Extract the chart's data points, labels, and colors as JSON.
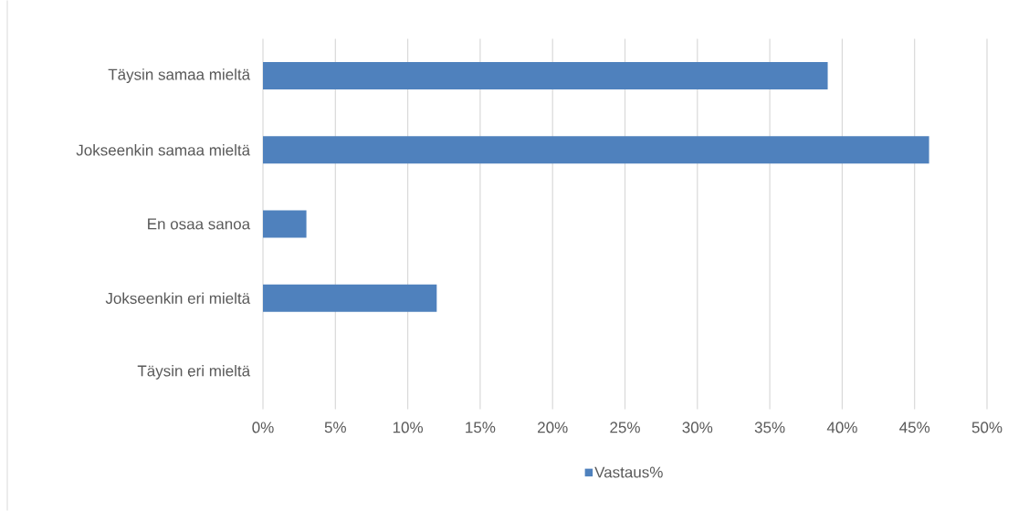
{
  "chart_data": {
    "type": "bar",
    "orientation": "horizontal",
    "categories": [
      "Täysin samaa mieltä",
      "Jokseenkin samaa mieltä",
      "En osaa sanoa",
      "Jokseenkin eri mieltä",
      "Täysin eri mieltä"
    ],
    "series": [
      {
        "name": "Vastaus%",
        "color": "#4f81bd",
        "values": [
          39,
          46,
          3,
          12,
          0
        ]
      }
    ],
    "xlim": [
      0,
      50
    ],
    "xticks": [
      {
        "value": 0,
        "label": "0%"
      },
      {
        "value": 5,
        "label": "5%"
      },
      {
        "value": 10,
        "label": "10%"
      },
      {
        "value": 15,
        "label": "15%"
      },
      {
        "value": 20,
        "label": "20%"
      },
      {
        "value": 25,
        "label": "25%"
      },
      {
        "value": 30,
        "label": "30%"
      },
      {
        "value": 35,
        "label": "35%"
      },
      {
        "value": 40,
        "label": "40%"
      },
      {
        "value": 45,
        "label": "45%"
      },
      {
        "value": 50,
        "label": "50%"
      }
    ],
    "grid": "x",
    "legend": "bottom"
  }
}
